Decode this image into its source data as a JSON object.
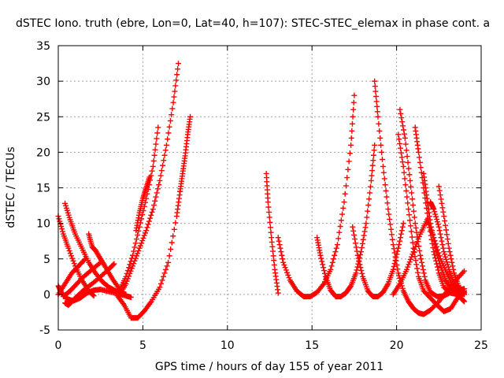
{
  "chart_data": {
    "type": "scatter",
    "title": "dSTEC Iono. truth (ebre, Lon=0, Lat=40, h=107): STEC-STEC_elemax in phase cont. a",
    "xlabel": "GPS time / hours of day 155 of year 2011",
    "ylabel": "dSTEC  / TECUs",
    "xlim": [
      0,
      25
    ],
    "ylim": [
      -5,
      35
    ],
    "xticks": [
      "0",
      "5",
      "10",
      "15",
      "20",
      "25"
    ],
    "yticks": [
      "-5",
      "0",
      "5",
      "10",
      "15",
      "20",
      "25",
      "30",
      "35"
    ],
    "grid": true,
    "marker": "plus",
    "color": "#ff0000",
    "series": [
      {
        "x": [
          0.0,
          0.3,
          0.6,
          1.0,
          1.4,
          1.8,
          2.1
        ],
        "y": [
          11.0,
          8.5,
          6.5,
          4.0,
          2.0,
          0.5,
          -0.2
        ]
      },
      {
        "x": [
          0.4,
          0.7,
          1.0,
          1.4,
          1.8,
          2.2,
          2.6,
          3.0,
          3.4,
          3.8,
          4.0
        ],
        "y": [
          12.8,
          10.5,
          8.5,
          6.5,
          4.5,
          3.0,
          1.8,
          1.0,
          0.5,
          0.1,
          0.0
        ]
      },
      {
        "x": [
          0.0,
          0.2,
          0.5,
          0.9,
          1.3,
          1.7,
          2.1,
          2.5,
          3.0,
          3.5,
          4.0,
          4.3
        ],
        "y": [
          1.2,
          0.2,
          -0.6,
          -0.9,
          -0.5,
          0.2,
          0.6,
          0.7,
          0.4,
          0.1,
          -0.2,
          -0.4
        ]
      },
      {
        "x": [
          0.0,
          0.4,
          0.8,
          1.2,
          1.6
        ],
        "y": [
          0.0,
          1.5,
          3.0,
          4.0,
          5.0
        ]
      },
      {
        "x": [
          0.3,
          0.7,
          1.1,
          1.5,
          2.0,
          2.5
        ],
        "y": [
          -0.3,
          0.5,
          1.5,
          2.5,
          3.5,
          4.5
        ]
      },
      {
        "x": [
          0.4,
          0.6,
          0.8,
          1.1,
          1.5,
          2.0,
          2.5,
          3.0,
          3.3
        ],
        "y": [
          -1.2,
          -1.5,
          -1.0,
          -0.3,
          0.6,
          1.5,
          2.5,
          3.6,
          4.3
        ]
      },
      {
        "x": [
          1.8,
          2.0,
          2.2,
          2.5,
          2.8,
          3.2,
          3.6,
          3.9
        ],
        "y": [
          8.5,
          6.7,
          6.2,
          5.0,
          3.8,
          2.2,
          0.8,
          0.0
        ]
      },
      {
        "x": [
          3.5,
          3.9,
          4.3,
          4.7,
          5.1,
          5.5,
          6.0,
          6.5,
          7.0,
          7.2
        ],
        "y": [
          -0.2,
          -1.5,
          -3.3,
          -3.3,
          -2.3,
          -1.0,
          1.0,
          4.5,
          11.0,
          14.5
        ]
      },
      {
        "x": [
          7.2,
          7.35,
          7.5,
          7.65,
          7.8
        ],
        "y": [
          14.5,
          17.0,
          19.5,
          22.5,
          25.0
        ]
      },
      {
        "x": [
          3.6,
          4.0,
          4.4,
          4.8,
          5.2,
          5.6,
          6.0,
          6.4,
          6.8,
          7.1
        ],
        "y": [
          -0.2,
          1.5,
          4.0,
          6.5,
          9.0,
          12.0,
          16.0,
          21.0,
          27.0,
          32.5
        ]
      },
      {
        "x": [
          3.6,
          4.0,
          4.4,
          4.8,
          5.2,
          5.6,
          5.9
        ],
        "y": [
          0.5,
          2.5,
          5.5,
          9.5,
          13.5,
          18.0,
          23.5
        ]
      },
      {
        "x": [
          4.6,
          4.8,
          5.0,
          5.2,
          5.4
        ],
        "y": [
          9.0,
          11.5,
          13.5,
          15.0,
          16.5
        ]
      },
      {
        "x": [
          12.3,
          12.4,
          12.6,
          12.8,
          13.0
        ],
        "y": [
          17.0,
          13.0,
          8.0,
          3.5,
          0.2
        ]
      },
      {
        "x": [
          13.0,
          13.3,
          13.7,
          14.1,
          14.5,
          14.9,
          15.3,
          15.7,
          16.1,
          16.5,
          16.9,
          17.3,
          17.5
        ],
        "y": [
          8.0,
          4.5,
          2.0,
          0.5,
          -0.3,
          -0.3,
          0.3,
          1.5,
          3.5,
          7.0,
          13.0,
          21.0,
          28.0
        ]
      },
      {
        "x": [
          15.3,
          15.5,
          15.8,
          16.1,
          16.4,
          16.7,
          17.0,
          17.3,
          17.6,
          17.9,
          18.2,
          18.5,
          18.7
        ],
        "y": [
          8.0,
          5.5,
          2.5,
          0.6,
          -0.3,
          -0.3,
          0.2,
          1.2,
          3.0,
          6.0,
          10.0,
          16.0,
          21.0
        ]
      },
      {
        "x": [
          17.4,
          17.7,
          18.0,
          18.3,
          18.6,
          18.9,
          19.2,
          19.5,
          19.8,
          20.1,
          20.4
        ],
        "y": [
          9.5,
          5.5,
          2.5,
          0.5,
          -0.3,
          -0.3,
          0.3,
          1.5,
          3.5,
          6.5,
          10.0
        ]
      },
      {
        "x": [
          18.7,
          18.9,
          19.2,
          19.5,
          19.8,
          20.1,
          20.4,
          20.7,
          21.0,
          21.3,
          21.6,
          22.0,
          22.5,
          23.0,
          23.5,
          24.0
        ],
        "y": [
          30.0,
          25.0,
          18.0,
          12.0,
          7.0,
          3.0,
          0.5,
          -1.0,
          -2.0,
          -2.6,
          -2.8,
          -2.2,
          -1.0,
          0.5,
          2.0,
          3.3
        ]
      },
      {
        "x": [
          20.1,
          20.4,
          20.7,
          21.0,
          21.3,
          21.6,
          22.0,
          22.4,
          22.8,
          23.2,
          23.6,
          24.0
        ],
        "y": [
          22.5,
          18.0,
          12.0,
          6.5,
          2.5,
          0.5,
          -0.5,
          -1.5,
          -2.4,
          -2.0,
          -0.5,
          0.5
        ]
      },
      {
        "x": [
          20.2,
          20.5,
          20.8,
          21.1,
          21.4,
          21.7,
          22.0,
          22.4,
          22.8,
          23.2,
          23.6,
          24.0
        ],
        "y": [
          26.0,
          22.0,
          16.0,
          10.0,
          5.5,
          2.0,
          0.3,
          -0.3,
          -0.2,
          0.3,
          0.6,
          0.8
        ]
      },
      {
        "x": [
          21.1,
          21.3,
          21.6,
          21.9,
          22.2,
          22.5,
          22.8,
          23.2,
          23.6,
          24.0
        ],
        "y": [
          23.5,
          20.0,
          15.0,
          10.0,
          6.0,
          3.0,
          1.0,
          0.2,
          0.0,
          0.1
        ]
      },
      {
        "x": [
          21.6,
          21.8,
          22.0,
          22.3,
          22.6,
          22.9,
          23.2,
          23.6,
          24.0
        ],
        "y": [
          17.0,
          13.5,
          10.0,
          6.5,
          4.0,
          2.0,
          0.8,
          0.2,
          0.3
        ]
      },
      {
        "x": [
          22.0,
          22.2,
          22.5,
          22.8,
          23.1,
          23.4,
          23.7,
          24.0
        ],
        "y": [
          13.0,
          12.0,
          9.5,
          6.0,
          3.5,
          1.5,
          0.5,
          0.0
        ]
      },
      {
        "x": [
          22.5,
          22.8,
          23.1,
          23.4,
          23.7,
          24.0
        ],
        "y": [
          15.2,
          11.0,
          6.5,
          3.0,
          1.0,
          0.3
        ]
      },
      {
        "x": [
          19.8,
          20.2,
          20.6,
          21.0,
          21.4,
          21.8,
          22.2,
          22.6,
          23.0,
          23.4,
          23.8,
          24.0
        ],
        "y": [
          0.0,
          1.5,
          3.5,
          6.0,
          8.5,
          10.5,
          8.0,
          5.0,
          2.8,
          1.0,
          -0.5,
          -1.0
        ]
      }
    ]
  }
}
